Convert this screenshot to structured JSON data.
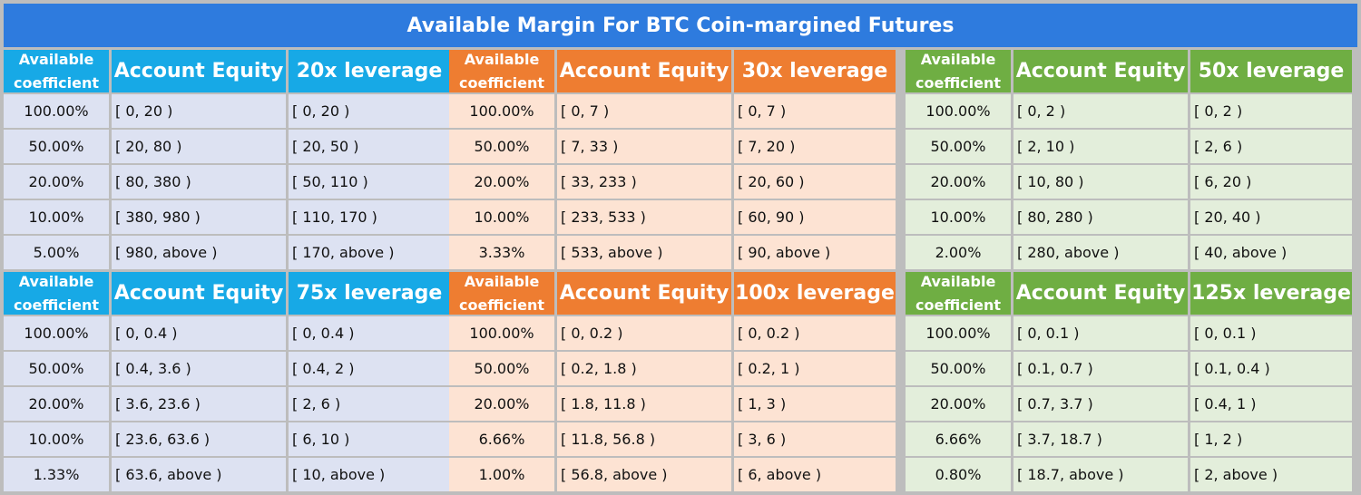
{
  "title": "Available Margin For BTC Coin-margined Futures",
  "colors": {
    "title": "#2e7bde",
    "blue": "#17a9e6",
    "orange": "#ee7d31",
    "green": "#6fae43"
  },
  "panels": [
    {
      "theme": "blue",
      "headers": [
        "Available coefficient",
        "Account Equity",
        "20x leverage"
      ],
      "coef_line1": "Available",
      "coef_line2": "coefficient",
      "rows": [
        [
          "100.00%",
          "[ 0, 20 )",
          "[ 0, 20 )"
        ],
        [
          "50.00%",
          "[ 20, 80 )",
          "[ 20, 50 )"
        ],
        [
          "20.00%",
          "[ 80, 380 )",
          "[ 50, 110 )"
        ],
        [
          "10.00%",
          "[ 380, 980 )",
          "[ 110, 170 )"
        ],
        [
          "5.00%",
          "[ 980, above )",
          "[ 170, above )"
        ]
      ]
    },
    {
      "theme": "orange",
      "headers": [
        "Available coefficient",
        "Account Equity",
        "30x leverage"
      ],
      "coef_line1": "Available",
      "coef_line2": "coefficient",
      "rows": [
        [
          "100.00%",
          "[ 0, 7 )",
          "[ 0, 7 )"
        ],
        [
          "50.00%",
          "[ 7, 33 )",
          "[ 7, 20 )"
        ],
        [
          "20.00%",
          "[ 33, 233 )",
          "[ 20, 60 )"
        ],
        [
          "10.00%",
          "[ 233, 533 )",
          "[ 60, 90 )"
        ],
        [
          "3.33%",
          "[ 533, above )",
          "[ 90, above )"
        ]
      ]
    },
    {
      "theme": "green",
      "headers": [
        "Available coefficient",
        "Account Equity",
        "50x leverage"
      ],
      "coef_line1": "Available",
      "coef_line2": "coefficient",
      "rows": [
        [
          "100.00%",
          "[ 0, 2 )",
          "[ 0, 2 )"
        ],
        [
          "50.00%",
          "[ 2, 10 )",
          "[ 2, 6 )"
        ],
        [
          "20.00%",
          "[ 10, 80 )",
          "[ 6, 20 )"
        ],
        [
          "10.00%",
          "[ 80, 280 )",
          "[ 20, 40 )"
        ],
        [
          "2.00%",
          "[ 280, above )",
          "[ 40, above )"
        ]
      ]
    },
    {
      "theme": "blue",
      "headers": [
        "Available coefficient",
        "Account Equity",
        "75x leverage"
      ],
      "coef_line1": "Available",
      "coef_line2": "coefficient",
      "rows": [
        [
          "100.00%",
          "[ 0, 0.4 )",
          "[ 0, 0.4 )"
        ],
        [
          "50.00%",
          "[ 0.4, 3.6 )",
          "[ 0.4, 2 )"
        ],
        [
          "20.00%",
          "[ 3.6, 23.6 )",
          "[ 2, 6 )"
        ],
        [
          "10.00%",
          "[ 23.6, 63.6 )",
          "[ 6, 10 )"
        ],
        [
          "1.33%",
          "[ 63.6, above )",
          "[ 10, above )"
        ]
      ]
    },
    {
      "theme": "orange",
      "headers": [
        "Available coefficient",
        "Account Equity",
        "100x leverage"
      ],
      "coef_line1": "Available",
      "coef_line2": "coefficient",
      "rows": [
        [
          "100.00%",
          "[ 0, 0.2 )",
          "[ 0, 0.2 )"
        ],
        [
          "50.00%",
          "[ 0.2, 1.8 )",
          "[ 0.2, 1 )"
        ],
        [
          "20.00%",
          "[ 1.8, 11.8 )",
          "[ 1, 3 )"
        ],
        [
          "6.66%",
          "[ 11.8, 56.8 )",
          "[ 3, 6 )"
        ],
        [
          "1.00%",
          "[ 56.8, above )",
          "[ 6, above )"
        ]
      ]
    },
    {
      "theme": "green",
      "headers": [
        "Available coefficient",
        "Account Equity",
        "125x leverage"
      ],
      "coef_line1": "Available",
      "coef_line2": "coefficient",
      "rows": [
        [
          "100.00%",
          "[ 0, 0.1 )",
          "[ 0, 0.1 )"
        ],
        [
          "50.00%",
          "[ 0.1, 0.7 )",
          "[ 0.1, 0.4 )"
        ],
        [
          "20.00%",
          "[ 0.7, 3.7 )",
          "[ 0.4, 1 )"
        ],
        [
          "6.66%",
          "[ 3.7, 18.7 )",
          "[ 1, 2 )"
        ],
        [
          "0.80%",
          "[ 18.7, above )",
          "[ 2, above )"
        ]
      ]
    }
  ]
}
